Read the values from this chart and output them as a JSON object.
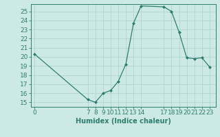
{
  "x": [
    0,
    7,
    8,
    9,
    10,
    11,
    12,
    13,
    14,
    17,
    18,
    19,
    20,
    21,
    22,
    23
  ],
  "y": [
    20.3,
    15.3,
    15.0,
    16.0,
    16.3,
    17.3,
    19.2,
    23.7,
    25.6,
    25.5,
    25.0,
    22.7,
    19.9,
    19.8,
    19.9,
    18.9
  ],
  "line_color": "#2d7d6f",
  "marker_color": "#2d7d6f",
  "bg_color": "#cce9e5",
  "grid_color": "#b0d4d0",
  "xlabel": "Humidex (Indice chaleur)",
  "xticks": [
    0,
    7,
    8,
    9,
    10,
    11,
    12,
    13,
    14,
    17,
    18,
    19,
    20,
    21,
    22,
    23
  ],
  "yticks": [
    15,
    16,
    17,
    18,
    19,
    20,
    21,
    22,
    23,
    24,
    25
  ],
  "ylim": [
    14.5,
    25.8
  ],
  "xlim": [
    -0.5,
    23.8
  ],
  "tick_color": "#2d7d6f",
  "label_color": "#2d7d6f",
  "font_size_label": 7,
  "font_size_tick": 6.5
}
